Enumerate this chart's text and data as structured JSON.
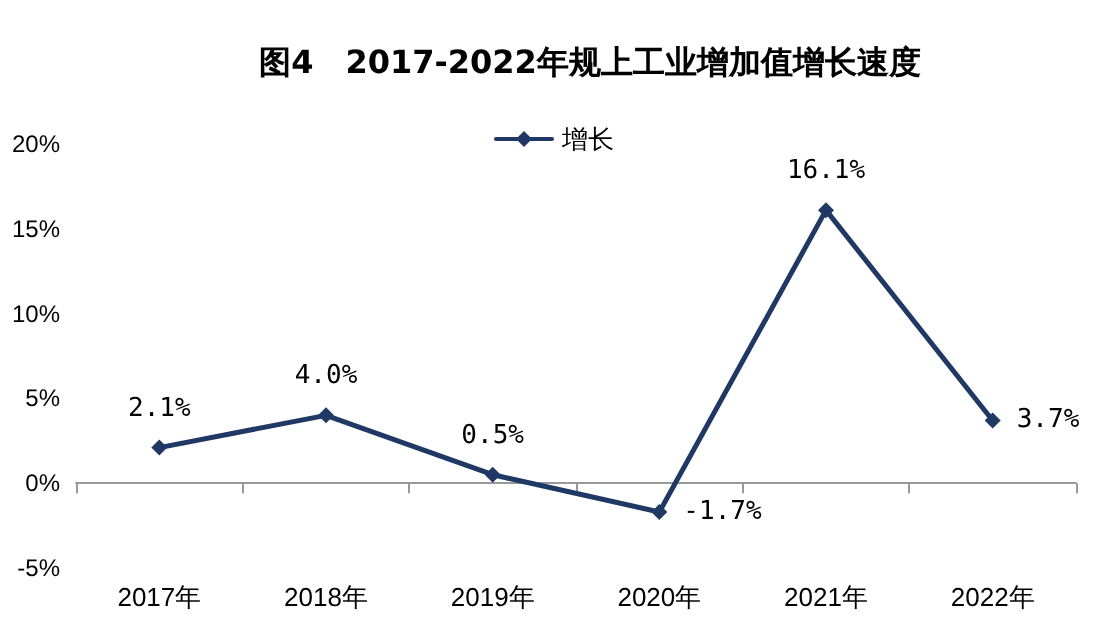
{
  "chart_data": {
    "type": "line",
    "title": "图4　2017-2022年规上工业增加值增长速度",
    "categories": [
      "2017年",
      "2018年",
      "2019年",
      "2020年",
      "2021年",
      "2022年"
    ],
    "series": [
      {
        "name": "增长",
        "color": "#203864",
        "values": [
          2.1,
          4.0,
          0.5,
          -1.7,
          16.1,
          3.7
        ],
        "value_labels": [
          "2.1%",
          "4.0%",
          "0.5%",
          "-1.7%",
          "16.1%",
          "3.7%"
        ]
      }
    ],
    "ylim": [
      -5,
      20
    ],
    "yticks": [
      {
        "value": -5,
        "label": "-5%"
      },
      {
        "value": 0,
        "label": "0%"
      },
      {
        "value": 5,
        "label": "5%"
      },
      {
        "value": 10,
        "label": "10%"
      },
      {
        "value": 15,
        "label": "15%"
      },
      {
        "value": 20,
        "label": "20%"
      }
    ],
    "legend": "top",
    "marker": "diamond",
    "line_style": "solid"
  }
}
